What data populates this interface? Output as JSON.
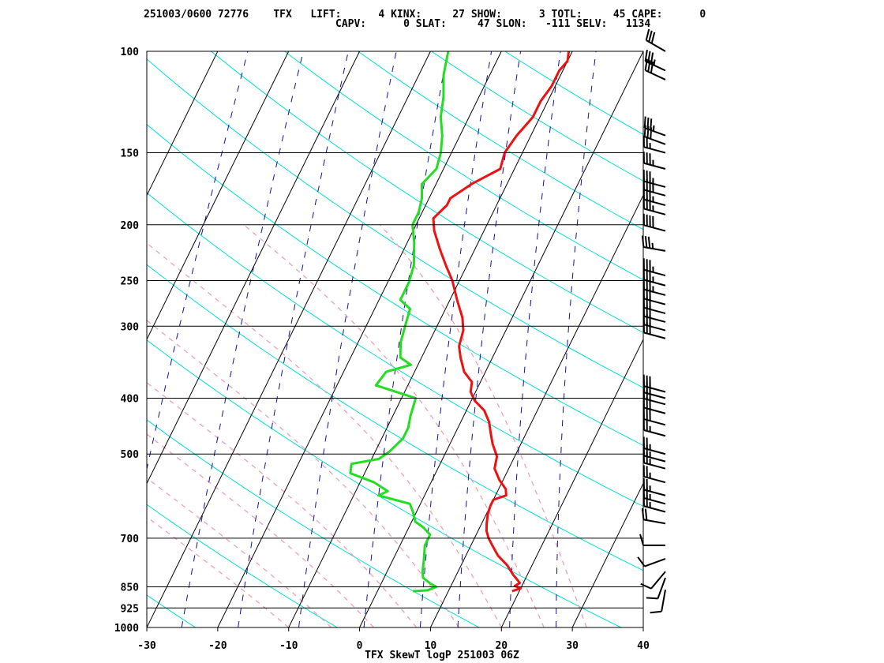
{
  "header": {
    "line1": "251003/0600 72776    TFX   LIFT:      4 KINX:     27 SHOW:      3 TOTL:     45 CAPE:      0",
    "line2": "CAPV:      0 SLAT:     47 SLON:   -111 SELV:   1134"
  },
  "colors": {
    "temperature": "#ee1111",
    "dewpoint": "#22dd22",
    "isotherm": "#000000",
    "dry_adiabat": "#00dddd",
    "moist_adiabat": "#f0a0b0",
    "mixing_ratio": "#1010a0",
    "barb": "#000000"
  },
  "chart_data": {
    "type": "line",
    "title": "TFX SkewT logP 251003 06Z",
    "xlabel": "",
    "ylabel": "",
    "xlim": [
      -30,
      40
    ],
    "ylim": [
      1000,
      100
    ],
    "y_scale": "log",
    "x_ticks": [
      -30,
      -20,
      -10,
      0,
      10,
      20,
      30,
      40
    ],
    "pressure_labels": [
      100,
      150,
      200,
      250,
      300,
      400,
      500,
      700,
      850,
      925,
      1000
    ],
    "series": [
      {
        "key": "temperature",
        "points": [
          [
            865,
            19.0
          ],
          [
            855,
            20.0
          ],
          [
            847,
            19.0
          ],
          [
            837,
            19.5
          ],
          [
            810,
            18.0
          ],
          [
            780,
            16.5
          ],
          [
            750,
            14.5
          ],
          [
            720,
            13.0
          ],
          [
            700,
            12.0
          ],
          [
            680,
            11.2
          ],
          [
            660,
            10.7
          ],
          [
            635,
            10.2
          ],
          [
            615,
            10.0
          ],
          [
            600,
            10.0
          ],
          [
            590,
            11.5
          ],
          [
            575,
            11.0
          ],
          [
            555,
            9.5
          ],
          [
            530,
            8.0
          ],
          [
            505,
            7.5
          ],
          [
            480,
            6.0
          ],
          [
            460,
            5.0
          ],
          [
            440,
            4.0
          ],
          [
            420,
            2.5
          ],
          [
            404,
            0.5
          ],
          [
            390,
            -0.7
          ],
          [
            375,
            -1.2
          ],
          [
            360,
            -3.0
          ],
          [
            340,
            -4.5
          ],
          [
            325,
            -5.5
          ],
          [
            305,
            -6.0
          ],
          [
            290,
            -7.0
          ],
          [
            270,
            -9.0
          ],
          [
            250,
            -11.0
          ],
          [
            235,
            -13.0
          ],
          [
            220,
            -15.0
          ],
          [
            205,
            -17.0
          ],
          [
            195,
            -18.0
          ],
          [
            185,
            -17.0
          ],
          [
            180,
            -17.0
          ],
          [
            170,
            -15.0
          ],
          [
            160,
            -12.0
          ],
          [
            150,
            -12.5
          ],
          [
            140,
            -12.0
          ],
          [
            130,
            -11.0
          ],
          [
            122,
            -11.0
          ],
          [
            115,
            -10.5
          ],
          [
            108,
            -10.5
          ],
          [
            104,
            -10.0
          ],
          [
            100,
            -10.5
          ]
        ]
      },
      {
        "key": "dewpoint",
        "points": [
          [
            865,
            5.0
          ],
          [
            862,
            7.0
          ],
          [
            850,
            8.0
          ],
          [
            840,
            7.0
          ],
          [
            820,
            5.5
          ],
          [
            800,
            5.0
          ],
          [
            770,
            4.5
          ],
          [
            745,
            4.0
          ],
          [
            720,
            3.5
          ],
          [
            690,
            3.5
          ],
          [
            670,
            2.0
          ],
          [
            655,
            0.5
          ],
          [
            630,
            -0.5
          ],
          [
            610,
            -1.5
          ],
          [
            590,
            -6.5
          ],
          [
            580,
            -5.5
          ],
          [
            560,
            -8.0
          ],
          [
            540,
            -12.0
          ],
          [
            520,
            -12.5
          ],
          [
            510,
            -9.0
          ],
          [
            495,
            -8.0
          ],
          [
            470,
            -7.0
          ],
          [
            450,
            -7.0
          ],
          [
            430,
            -7.5
          ],
          [
            400,
            -8.0
          ],
          [
            380,
            -14.5
          ],
          [
            360,
            -14.0
          ],
          [
            350,
            -11.0
          ],
          [
            340,
            -13.0
          ],
          [
            320,
            -14.0
          ],
          [
            300,
            -14.5
          ],
          [
            280,
            -15.0
          ],
          [
            270,
            -17.0
          ],
          [
            262,
            -17.0
          ],
          [
            252,
            -17.0
          ],
          [
            235,
            -17.5
          ],
          [
            215,
            -19.0
          ],
          [
            200,
            -20.5
          ],
          [
            190,
            -20.5
          ],
          [
            180,
            -21.0
          ],
          [
            170,
            -22.0
          ],
          [
            160,
            -21.0
          ],
          [
            150,
            -21.5
          ],
          [
            140,
            -22.5
          ],
          [
            130,
            -24.0
          ],
          [
            120,
            -25.0
          ],
          [
            110,
            -26.5
          ],
          [
            105,
            -27.0
          ],
          [
            100,
            -27.5
          ]
        ]
      }
    ],
    "wind_barbs": [
      {
        "p": 100,
        "dir": 300,
        "spd": 30
      },
      {
        "p": 108,
        "dir": 295,
        "spd": 35
      },
      {
        "p": 112,
        "dir": 295,
        "spd": 30
      },
      {
        "p": 140,
        "dir": 290,
        "spd": 35
      },
      {
        "p": 145,
        "dir": 290,
        "spd": 30
      },
      {
        "p": 150,
        "dir": 285,
        "spd": 25
      },
      {
        "p": 160,
        "dir": 285,
        "spd": 35
      },
      {
        "p": 172,
        "dir": 285,
        "spd": 35
      },
      {
        "p": 178,
        "dir": 285,
        "spd": 40
      },
      {
        "p": 185,
        "dir": 285,
        "spd": 35
      },
      {
        "p": 192,
        "dir": 285,
        "spd": 35
      },
      {
        "p": 205,
        "dir": 285,
        "spd": 40
      },
      {
        "p": 222,
        "dir": 280,
        "spd": 35
      },
      {
        "p": 245,
        "dir": 285,
        "spd": 35
      },
      {
        "p": 255,
        "dir": 285,
        "spd": 35
      },
      {
        "p": 265,
        "dir": 285,
        "spd": 35
      },
      {
        "p": 275,
        "dir": 285,
        "spd": 30
      },
      {
        "p": 285,
        "dir": 285,
        "spd": 30
      },
      {
        "p": 295,
        "dir": 285,
        "spd": 30
      },
      {
        "p": 305,
        "dir": 285,
        "spd": 30
      },
      {
        "p": 315,
        "dir": 285,
        "spd": 30
      },
      {
        "p": 390,
        "dir": 285,
        "spd": 30
      },
      {
        "p": 400,
        "dir": 285,
        "spd": 30
      },
      {
        "p": 410,
        "dir": 285,
        "spd": 30
      },
      {
        "p": 425,
        "dir": 285,
        "spd": 30
      },
      {
        "p": 445,
        "dir": 285,
        "spd": 30
      },
      {
        "p": 465,
        "dir": 285,
        "spd": 25
      },
      {
        "p": 500,
        "dir": 285,
        "spd": 25
      },
      {
        "p": 515,
        "dir": 285,
        "spd": 25
      },
      {
        "p": 530,
        "dir": 285,
        "spd": 25
      },
      {
        "p": 560,
        "dir": 285,
        "spd": 25
      },
      {
        "p": 590,
        "dir": 285,
        "spd": 25
      },
      {
        "p": 610,
        "dir": 285,
        "spd": 25
      },
      {
        "p": 630,
        "dir": 285,
        "spd": 25
      },
      {
        "p": 660,
        "dir": 280,
        "spd": 20
      },
      {
        "p": 720,
        "dir": 270,
        "spd": 10
      },
      {
        "p": 760,
        "dir": 250,
        "spd": 10
      },
      {
        "p": 800,
        "dir": 220,
        "spd": 10
      },
      {
        "p": 820,
        "dir": 200,
        "spd": 10
      },
      {
        "p": 860,
        "dir": 190,
        "spd": 10
      }
    ]
  }
}
